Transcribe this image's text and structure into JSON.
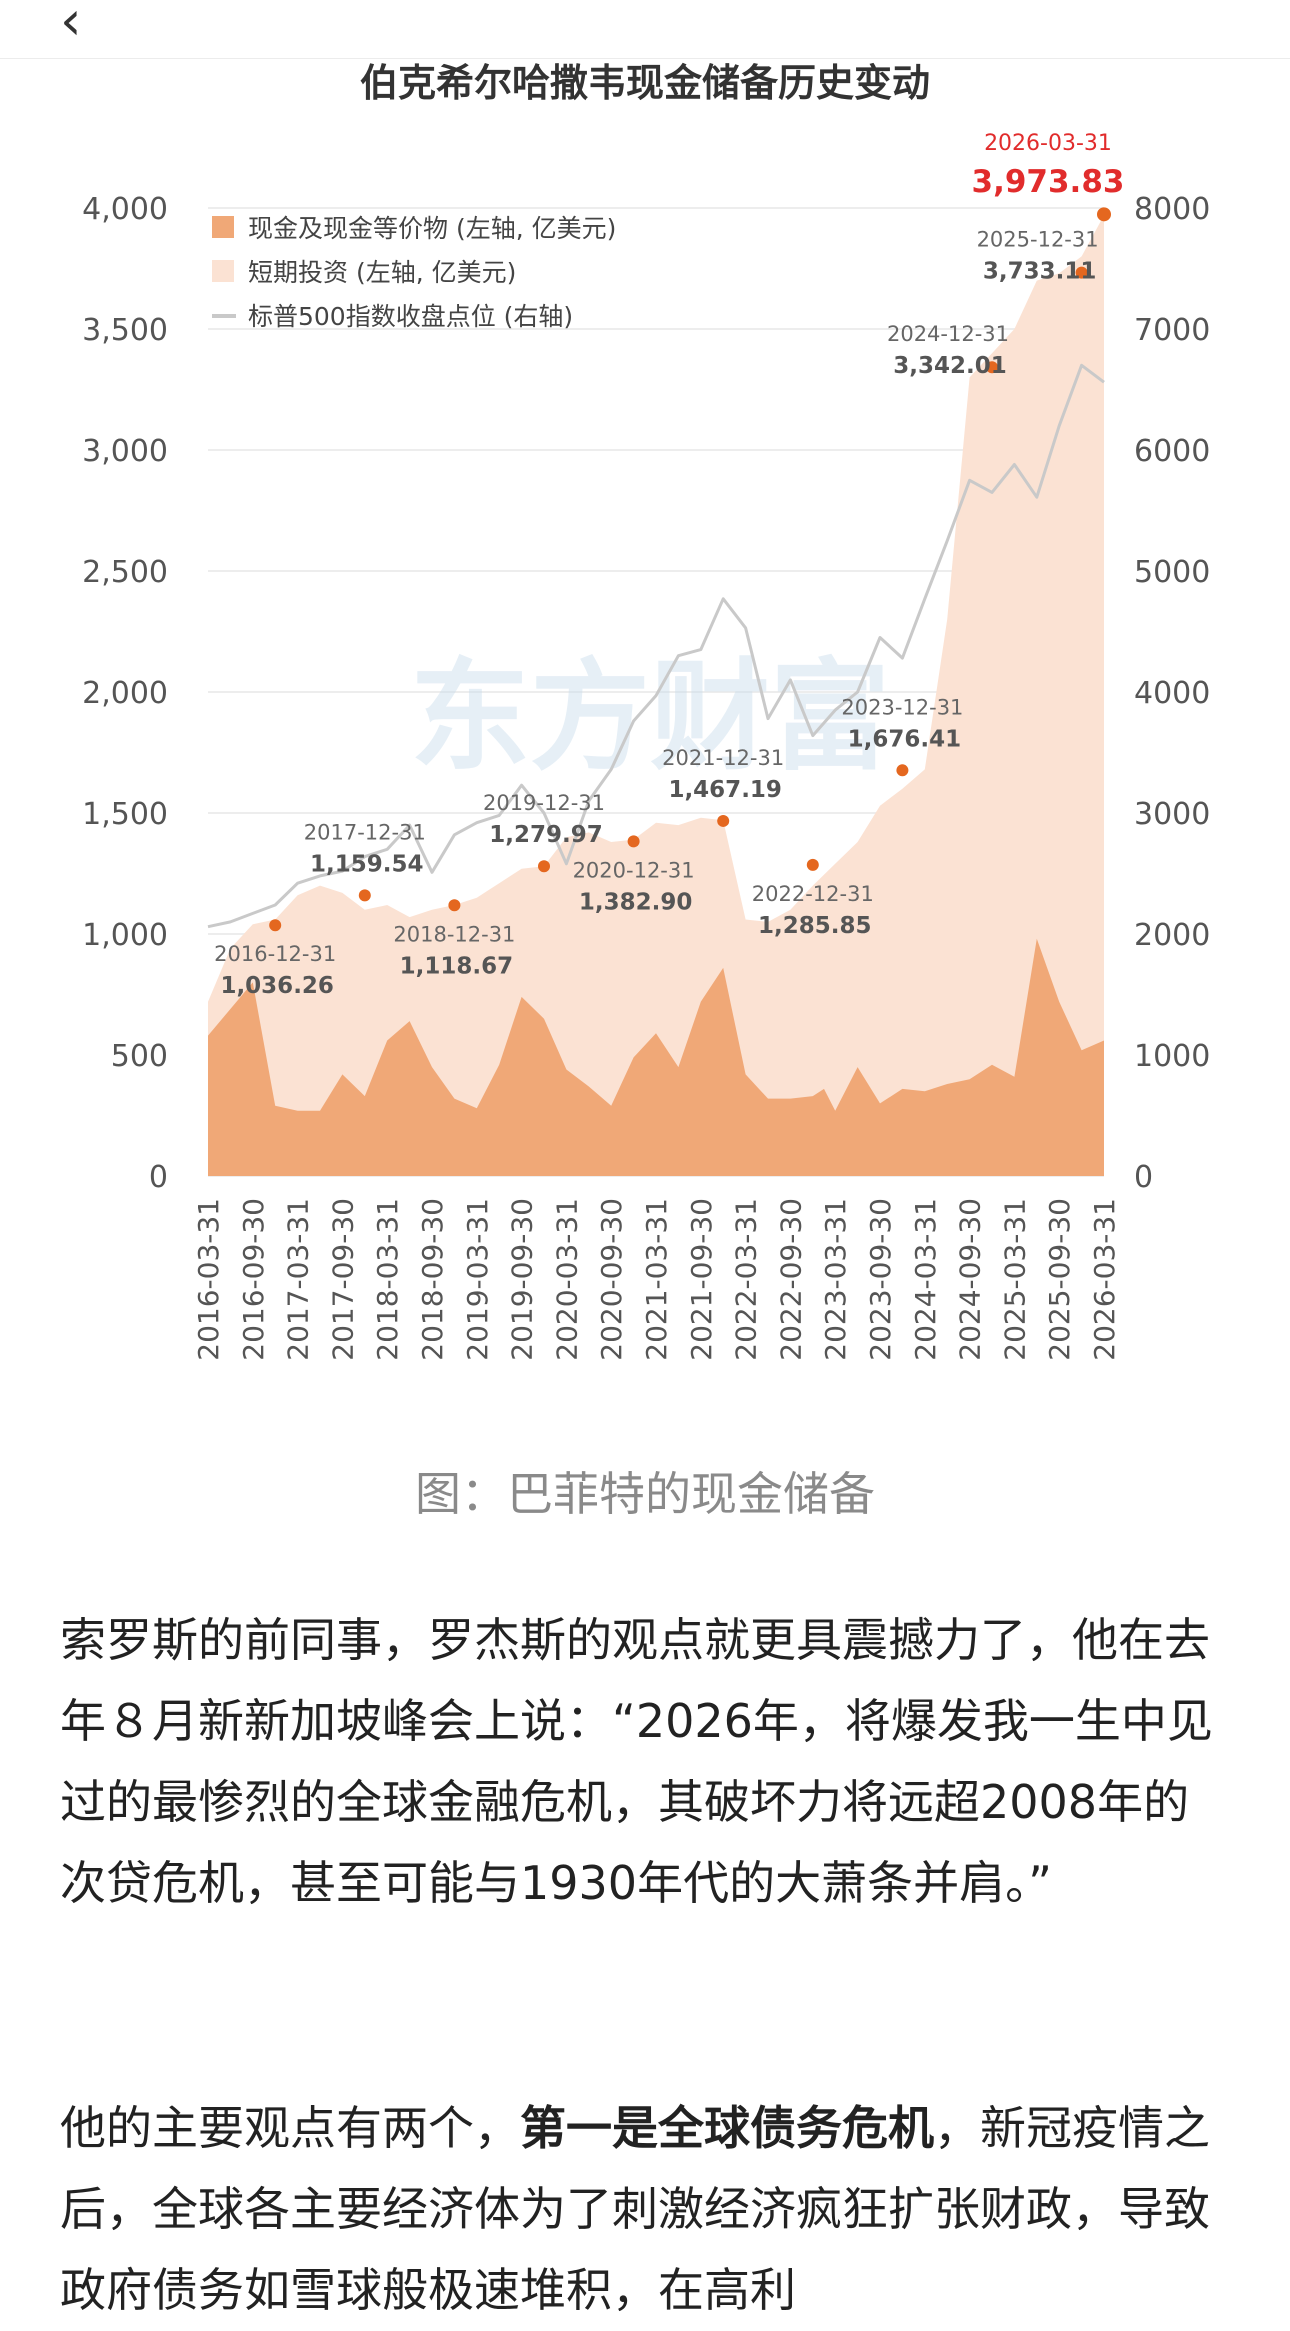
{
  "nav": {
    "back_icon": "chevron-left-icon"
  },
  "chart_data": {
    "type": "area",
    "title": "伯克希尔哈撒韦现金储备历史变动",
    "legend": [
      {
        "label": "现金及现金等价物 (左轴, 亿美元)",
        "color": "#f0a877"
      },
      {
        "label": "短期投资 (左轴, 亿美元)",
        "color": "#fbe2d3"
      },
      {
        "label": "标普500指数收盘点位 (右轴)",
        "color": "#c9c9c9"
      }
    ],
    "legend_position": "top-left",
    "x_labels": [
      "2016-03-31",
      "2016-09-30",
      "2017-03-31",
      "2017-09-30",
      "2018-03-31",
      "2018-09-30",
      "2019-03-31",
      "2019-09-30",
      "2020-03-31",
      "2020-09-30",
      "2021-03-31",
      "2021-09-30",
      "2022-03-31",
      "2022-09-30",
      "2023-03-31",
      "2023-09-30",
      "2024-03-31",
      "2024-09-30",
      "2025-03-31",
      "2025-09-30",
      "2026-03-31"
    ],
    "y_left": {
      "min": 0,
      "max": 4000,
      "ticks": [
        "0",
        "500",
        "1,000",
        "1,500",
        "2,000",
        "2,500",
        "3,000",
        "3,500",
        "4,000"
      ]
    },
    "y_right": {
      "min": 0,
      "max": 8000,
      "ticks": [
        "0",
        "1000",
        "2000",
        "3000",
        "4000",
        "5000",
        "6000",
        "7000",
        "8000"
      ]
    },
    "series": [
      {
        "name": "现金及现金等价物 (左轴, 亿美元)",
        "axis": "left",
        "x": [
          0,
          1,
          2,
          3,
          4,
          5,
          6,
          7,
          8,
          9,
          10,
          11,
          12,
          13,
          14,
          15,
          16,
          17,
          18,
          19,
          20,
          21,
          22,
          23,
          24,
          25,
          26,
          27,
          27.5,
          28,
          29,
          30,
          31,
          32,
          33,
          34,
          35,
          36,
          37,
          38,
          39,
          40
        ],
        "values": [
          580,
          690,
          800,
          290,
          270,
          270,
          420,
          330,
          560,
          640,
          450,
          320,
          280,
          460,
          740,
          650,
          440,
          370,
          290,
          490,
          590,
          450,
          720,
          860,
          420,
          320,
          320,
          330,
          360,
          270,
          450,
          300,
          360,
          350,
          380,
          400,
          460,
          410,
          980,
          720,
          520,
          560
        ]
      },
      {
        "name": "短期投资 (左轴, 亿美元)",
        "axis": "left",
        "x": [
          0,
          1,
          2,
          3,
          4,
          5,
          6,
          7,
          8,
          9,
          10,
          11,
          12,
          13,
          14,
          15,
          16,
          17,
          18,
          19,
          20,
          21,
          22,
          23,
          24,
          25,
          26,
          27,
          28,
          29,
          30,
          31,
          32,
          33,
          34,
          35,
          36,
          37,
          38,
          39,
          40
        ],
        "values": [
          720,
          940,
          1040,
          1060,
          1160,
          1200,
          1170,
          1100,
          1120,
          1070,
          1100,
          1120,
          1150,
          1210,
          1270,
          1280,
          1400,
          1420,
          1380,
          1390,
          1460,
          1450,
          1480,
          1470,
          1060,
          1050,
          1100,
          1200,
          1290,
          1380,
          1530,
          1600,
          1680,
          2300,
          3300,
          3400,
          3500,
          3700,
          3730,
          3800,
          3970
        ]
      },
      {
        "name": "标普500指数收盘点位 (右轴)",
        "axis": "right",
        "x": [
          0,
          1,
          2,
          3,
          4,
          5,
          6,
          7,
          8,
          9,
          10,
          11,
          12,
          13,
          14,
          15,
          16,
          17,
          18,
          19,
          20,
          21,
          22,
          23,
          24,
          25,
          26,
          27,
          28,
          29,
          30,
          31,
          32,
          33,
          34,
          35,
          36,
          37,
          38,
          39,
          40
        ],
        "values": [
          2060,
          2100,
          2170,
          2240,
          2420,
          2480,
          2520,
          2640,
          2700,
          2900,
          2510,
          2820,
          2920,
          2980,
          3230,
          3000,
          2580,
          3100,
          3360,
          3760,
          3970,
          4300,
          4350,
          4770,
          4530,
          3780,
          4100,
          3640,
          3850,
          4000,
          4450,
          4280,
          4770,
          5250,
          5750,
          5650,
          5880,
          5610,
          6200,
          6700,
          6560
        ]
      }
    ],
    "annotations": [
      {
        "date": "2016-12-31",
        "value": "1,036.26",
        "x": 3,
        "y": 1036.26,
        "label_pos": "below"
      },
      {
        "date": "2017-12-31",
        "value": "1,159.54",
        "x": 7,
        "y": 1159.54,
        "label_pos": "above"
      },
      {
        "date": "2018-12-31",
        "value": "1,118.67",
        "x": 11,
        "y": 1118.67,
        "label_pos": "below"
      },
      {
        "date": "2019-12-31",
        "value": "1,279.97",
        "x": 15,
        "y": 1279.97,
        "label_pos": "above"
      },
      {
        "date": "2020-12-31",
        "value": "1,382.90",
        "x": 19,
        "y": 1382.9,
        "label_pos": "below"
      },
      {
        "date": "2021-12-31",
        "value": "1,467.19",
        "x": 23,
        "y": 1467.19,
        "label_pos": "above"
      },
      {
        "date": "2022-12-31",
        "value": "1,285.85",
        "x": 27,
        "y": 1285.85,
        "label_pos": "below"
      },
      {
        "date": "2023-12-31",
        "value": "1,676.41",
        "x": 31,
        "y": 1676.41,
        "label_pos": "above"
      },
      {
        "date": "2024-12-31",
        "value": "3,342.01",
        "x": 35,
        "y": 3342.01,
        "label_pos": "left"
      },
      {
        "date": "2025-12-31",
        "value": "3,733.11",
        "x": 39,
        "y": 3733.11,
        "label_pos": "left"
      },
      {
        "date": "2026-03-31",
        "value": "3,973.83",
        "x": 40,
        "y": 3973.83,
        "label_pos": "top",
        "highlight": true
      }
    ],
    "watermark": "东方财富",
    "grid": true,
    "colors": {
      "cash": "#f0a877",
      "short_term": "#fbe2d3",
      "sp500": "#c9c9c9",
      "dot": "#e4671f",
      "highlight": "#e12c2c"
    }
  },
  "caption": "图：巴菲特的现金储备",
  "article": {
    "p1": "索罗斯的前同事，罗杰斯的观点就更具震撼力了，他在去年８月新新加坡峰会上说：“2026年，将爆发我一生中见过的最惨烈的全球金融危机，其破坏力将远超2008年的次贷危机，甚至可能与1930年代的大萧条并肩。”",
    "p2_start": "他的主要观点有两个，",
    "p2_bold": "第一是全球债务危机",
    "p2_rest": "，新冠疫情之后，全球各主要经济体为了刺激经济疯狂扩张财政，导致政府债务如雪球般极速堆积，在高利"
  }
}
